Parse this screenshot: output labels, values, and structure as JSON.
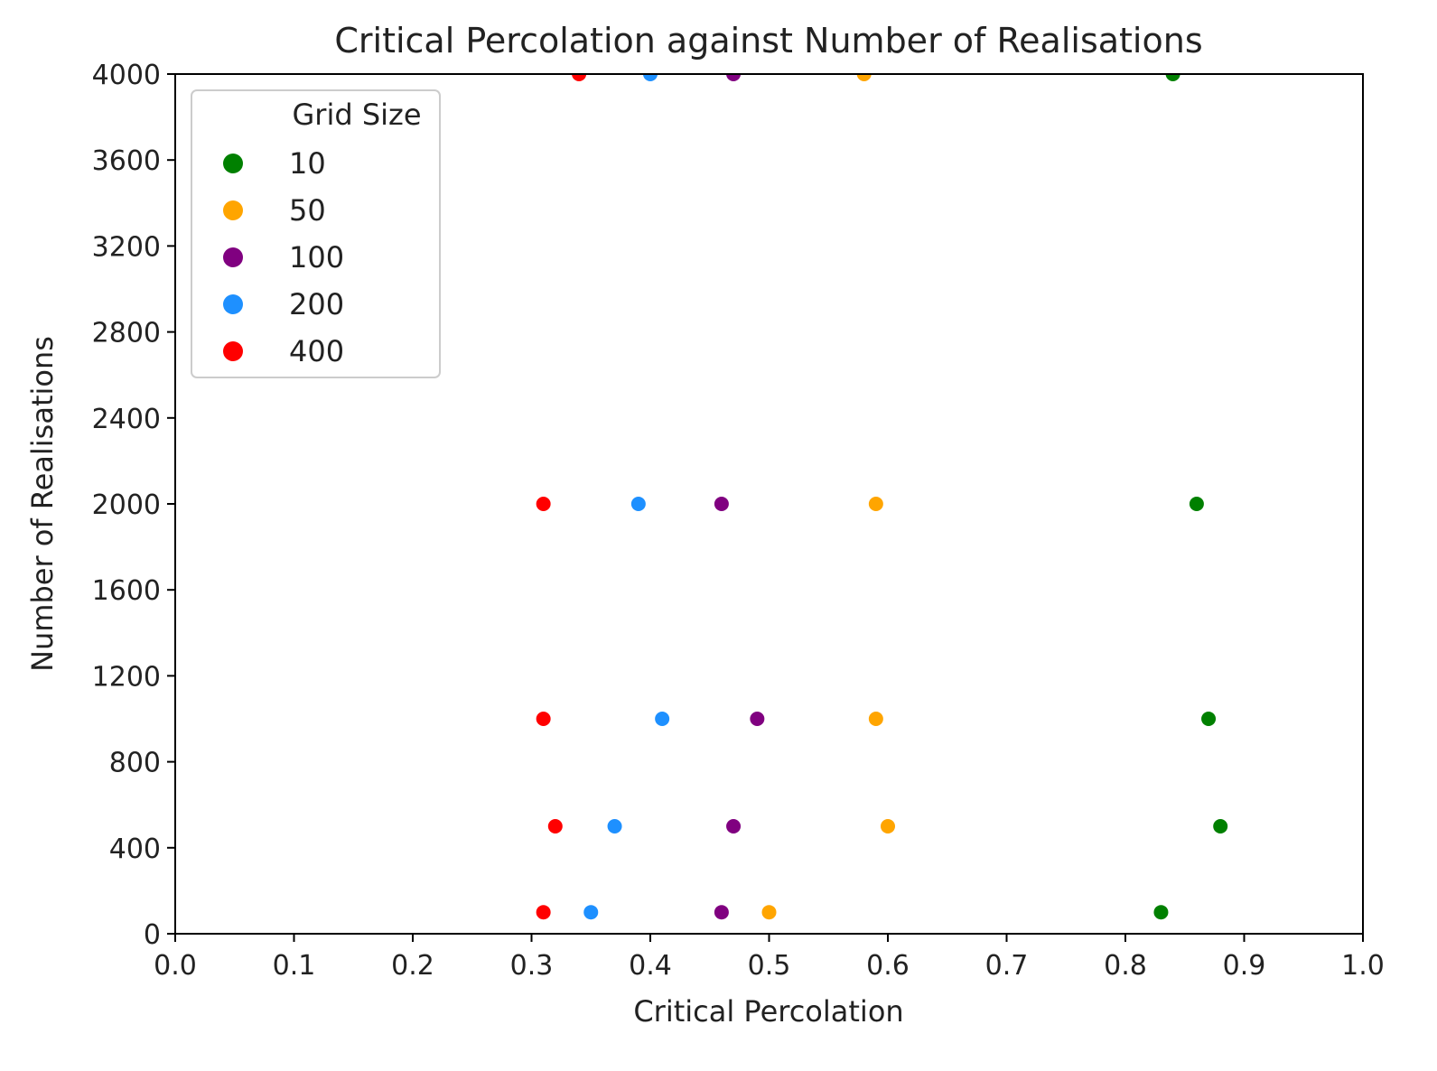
{
  "chart_data": {
    "type": "scatter",
    "title": "Critical Percolation against Number of Realisations",
    "xlabel": "Critical Percolation",
    "ylabel": "Number of Realisations",
    "xlim": [
      0.0,
      1.0
    ],
    "ylim": [
      0,
      4000
    ],
    "xticks": [
      "0.0",
      "0.1",
      "0.2",
      "0.3",
      "0.4",
      "0.5",
      "0.6",
      "0.7",
      "0.8",
      "0.9",
      "1.0"
    ],
    "yticks": [
      "0",
      "400",
      "800",
      "1200",
      "1600",
      "2000",
      "2400",
      "2800",
      "3200",
      "3600",
      "4000"
    ],
    "grid": false,
    "legend": {
      "title": "Grid Size",
      "placement": "upper-left"
    },
    "series": [
      {
        "name": "10",
        "color": "#008000",
        "points": [
          [
            0.83,
            100
          ],
          [
            0.88,
            500
          ],
          [
            0.87,
            1000
          ],
          [
            0.86,
            2000
          ],
          [
            0.84,
            4000
          ]
        ]
      },
      {
        "name": "50",
        "color": "#FFA500",
        "points": [
          [
            0.5,
            100
          ],
          [
            0.6,
            500
          ],
          [
            0.59,
            1000
          ],
          [
            0.59,
            2000
          ],
          [
            0.58,
            4000
          ]
        ]
      },
      {
        "name": "100",
        "color": "#800080",
        "points": [
          [
            0.46,
            100
          ],
          [
            0.47,
            500
          ],
          [
            0.49,
            1000
          ],
          [
            0.46,
            2000
          ],
          [
            0.47,
            4000
          ]
        ]
      },
      {
        "name": "200",
        "color": "#1E90FF",
        "points": [
          [
            0.35,
            100
          ],
          [
            0.37,
            500
          ],
          [
            0.41,
            1000
          ],
          [
            0.39,
            2000
          ],
          [
            0.4,
            4000
          ]
        ]
      },
      {
        "name": "400",
        "color": "#FF0000",
        "points": [
          [
            0.31,
            100
          ],
          [
            0.32,
            500
          ],
          [
            0.31,
            1000
          ],
          [
            0.31,
            2000
          ],
          [
            0.34,
            4000
          ]
        ]
      }
    ]
  }
}
